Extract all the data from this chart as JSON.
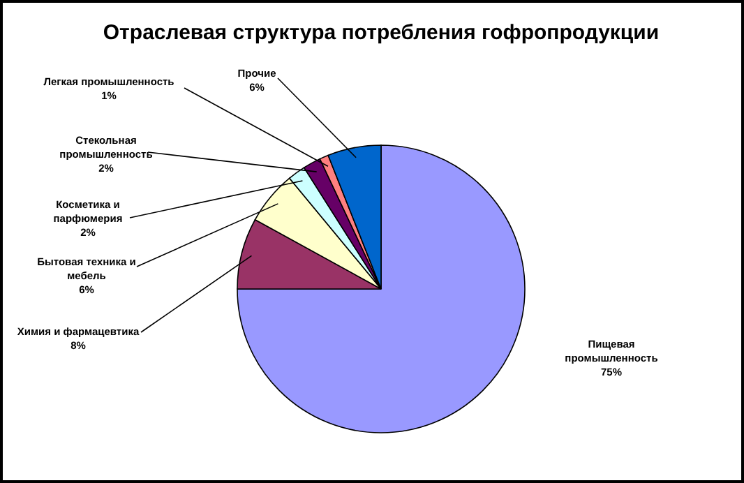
{
  "chart_data": {
    "type": "pie",
    "title": "Отраслевая структура потребления гофропродукции",
    "categories": [
      "Пищевая промышленность",
      "Химия и фармацевтика",
      "Бытовая техника и мебель",
      "Косметика и парфюмерия",
      "Стекольная промышленность",
      "Легкая промышленность",
      "Прочие"
    ],
    "values": [
      75,
      8,
      6,
      2,
      2,
      1,
      6
    ],
    "colors": [
      "#9999ff",
      "#993366",
      "#ffffcc",
      "#ccffff",
      "#660066",
      "#ff8080",
      "#0066cc"
    ],
    "value_labels": [
      "75%",
      "8%",
      "6%",
      "2%",
      "2%",
      "1%",
      "6%"
    ]
  }
}
